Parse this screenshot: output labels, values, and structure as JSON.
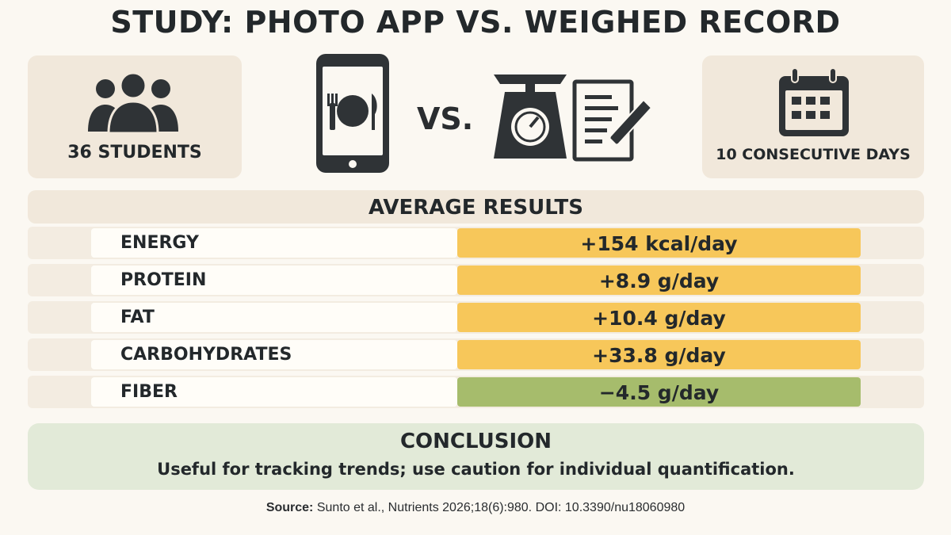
{
  "title": "STUDY: PHOTO APP VS. WEIGHED RECORD",
  "participants": {
    "label": "36 STUDENTS",
    "icon": "group-icon"
  },
  "comparison": {
    "vs_label": "VS.",
    "left_icon": "smartphone-plate-icon",
    "right_icons": [
      "kitchen-scale-icon",
      "notepad-pencil-icon"
    ]
  },
  "duration": {
    "label": "10 CONSECUTIVE DAYS",
    "icon": "calendar-icon"
  },
  "results": {
    "header": "AVERAGE RESULTS",
    "rows": [
      {
        "name": "ENERGY",
        "value": "+154 kcal/day",
        "color": "#f7c75a"
      },
      {
        "name": "PROTEIN",
        "value": "+8.9 g/day",
        "color": "#f7c75a"
      },
      {
        "name": "FAT",
        "value": "+10.4 g/day",
        "color": "#f7c75a"
      },
      {
        "name": "CARBOHYDRATES",
        "value": "+33.8 g/day",
        "color": "#f7c75a"
      },
      {
        "name": "FIBER",
        "value": "−4.5 g/day",
        "color": "#a6bc6c"
      }
    ]
  },
  "conclusion": {
    "heading": "CONCLUSION",
    "text": "Useful for tracking trends; use caution for individual quantification."
  },
  "source": {
    "label": "Source:",
    "text": "Sunto et al., Nutrients 2026;18(6):980. DOI: 10.3390/nu18060980"
  },
  "colors": {
    "background": "#fbf8f2",
    "card": "#f1e8db",
    "increase": "#f7c75a",
    "decrease": "#a6bc6c",
    "conclusion": "#e2ead8",
    "icon": "#2f3336"
  }
}
